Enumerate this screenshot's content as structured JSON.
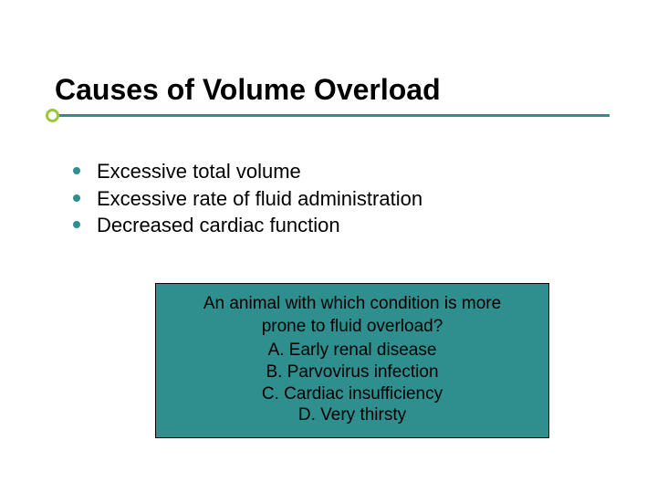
{
  "slide": {
    "title": "Causes of Volume Overload",
    "title_fontsize": 32,
    "title_color": "#000000",
    "underline_color": "#2f8e8e",
    "underline_cap_color": "#9ac836",
    "background_color": "#ffffff"
  },
  "bullets": {
    "items": [
      "Excessive total volume",
      "Excessive rate of fluid administration",
      "Decreased cardiac function"
    ],
    "bullet_color": "#2f8e8e",
    "text_fontsize": 22,
    "text_color": "#000000"
  },
  "callout": {
    "question_line1": "An animal with which condition is more",
    "question_line2": "prone to fluid overload?",
    "options": [
      "A. Early renal disease",
      "B. Parvovirus infection",
      "C. Cardiac insufficiency",
      "D. Very thirsty"
    ],
    "background_color": "#2f8e8e",
    "border_color": "#000000",
    "text_fontsize": 19,
    "text_color": "#000000"
  }
}
